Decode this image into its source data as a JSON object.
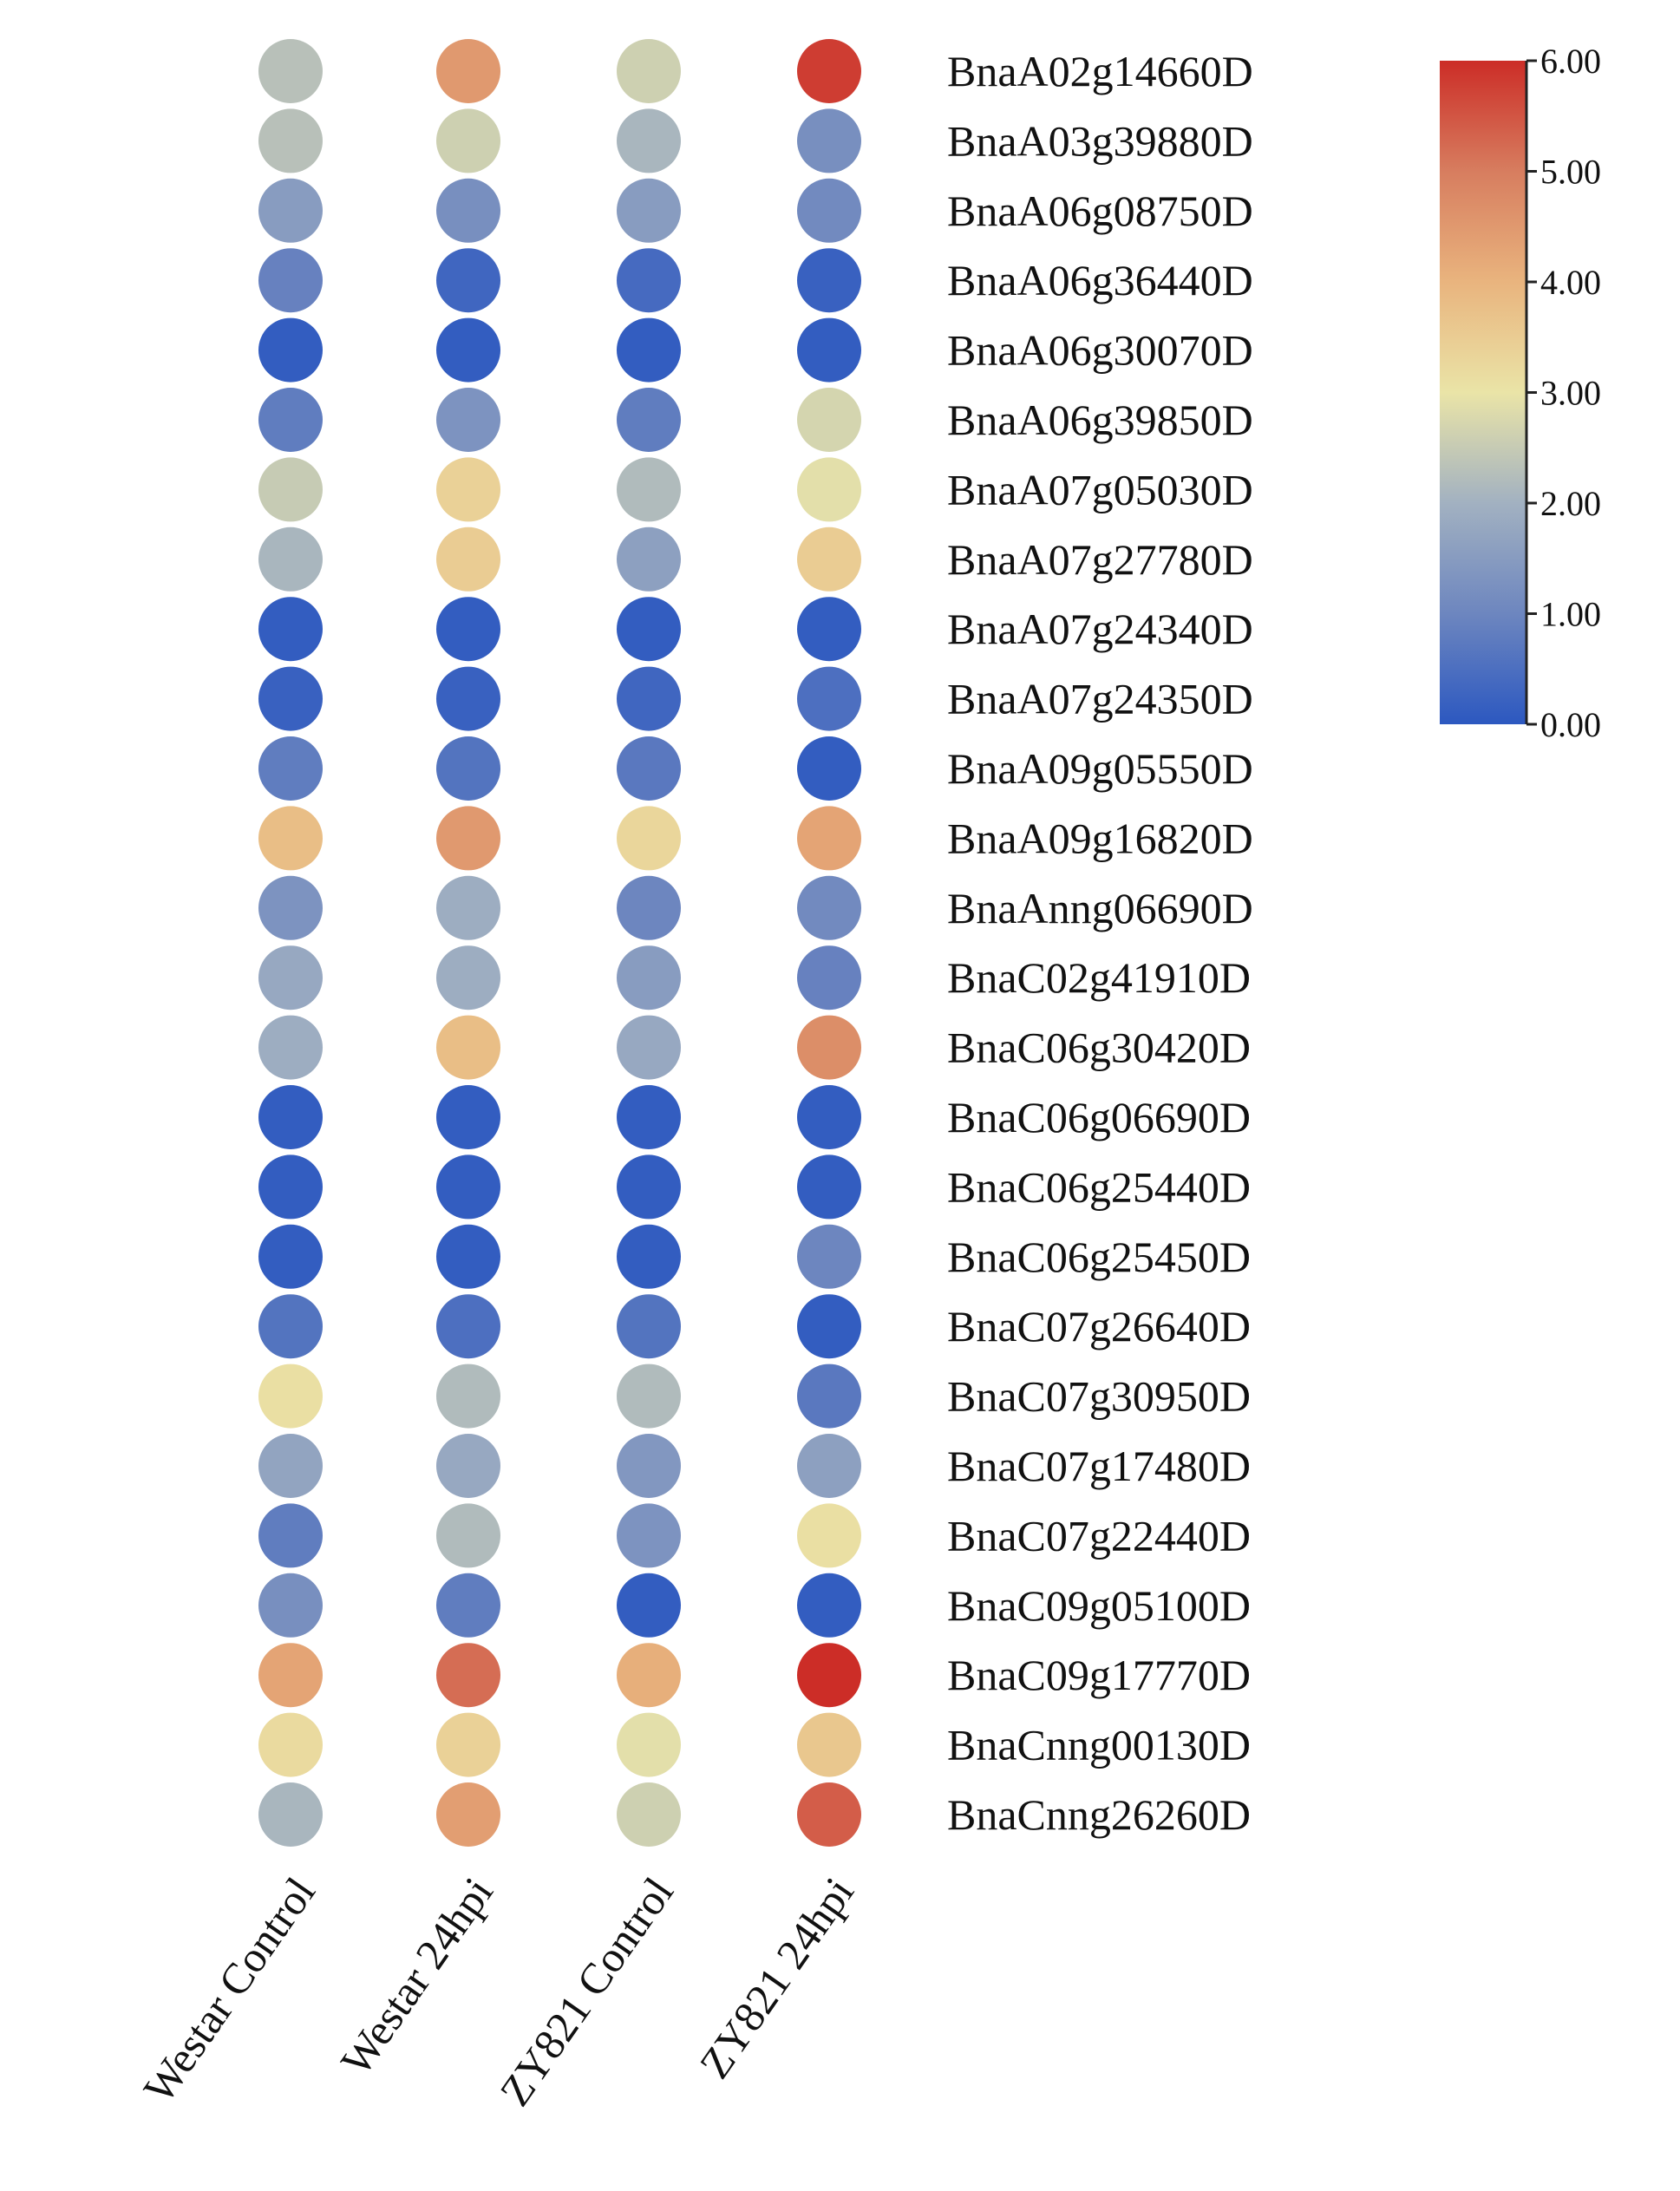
{
  "chart_data": {
    "type": "heatmap",
    "columns": [
      "Westar Control",
      "Westar 24hpi",
      "ZY821 Control",
      "ZY821 24hpi"
    ],
    "rows": [
      "BnaA02g14660D",
      "BnaA03g39880D",
      "BnaA06g08750D",
      "BnaA06g36440D",
      "BnaA06g30070D",
      "BnaA06g39850D",
      "BnaA07g05030D",
      "BnaA07g27780D",
      "BnaA07g24340D",
      "BnaA07g24350D",
      "BnaA09g05550D",
      "BnaA09g16820D",
      "BnaAnng06690D",
      "BnaC02g41910D",
      "BnaC06g30420D",
      "BnaC06g06690D",
      "BnaC06g25440D",
      "BnaC06g25450D",
      "BnaC07g26640D",
      "BnaC07g30950D",
      "BnaC07g17480D",
      "BnaC07g22440D",
      "BnaC09g05100D",
      "BnaC09g17770D",
      "BnaCnng00130D",
      "BnaCnng26260D"
    ],
    "values": [
      [
        2.3,
        4.5,
        2.6,
        5.8
      ],
      [
        2.3,
        2.6,
        2.1,
        1.2
      ],
      [
        1.5,
        1.2,
        1.5,
        1.1
      ],
      [
        0.9,
        0.3,
        0.4,
        0.2
      ],
      [
        0.1,
        0.1,
        0.1,
        0.1
      ],
      [
        0.8,
        1.3,
        0.8,
        2.7
      ],
      [
        2.5,
        3.4,
        2.2,
        2.9
      ],
      [
        2.1,
        3.5,
        1.6,
        3.5
      ],
      [
        0.1,
        0.1,
        0.1,
        0.1
      ],
      [
        0.2,
        0.2,
        0.3,
        0.5
      ],
      [
        0.8,
        0.6,
        0.7,
        0.1
      ],
      [
        3.8,
        4.5,
        3.3,
        4.3
      ],
      [
        1.3,
        1.9,
        1.0,
        1.1
      ],
      [
        1.8,
        1.9,
        1.5,
        0.9
      ],
      [
        1.9,
        3.8,
        1.8,
        4.7
      ],
      [
        0.1,
        0.1,
        0.1,
        0.1
      ],
      [
        0.1,
        0.1,
        0.1,
        0.1
      ],
      [
        0.1,
        0.1,
        0.1,
        1.0
      ],
      [
        0.6,
        0.5,
        0.6,
        0.1
      ],
      [
        3.1,
        2.2,
        2.2,
        0.7
      ],
      [
        1.7,
        1.8,
        1.4,
        1.6
      ],
      [
        0.8,
        2.2,
        1.3,
        3.1
      ],
      [
        1.2,
        0.8,
        0.1,
        0.1
      ],
      [
        4.3,
        5.2,
        4.1,
        6.0
      ],
      [
        3.2,
        3.4,
        2.9,
        3.6
      ],
      [
        2.1,
        4.4,
        2.6,
        5.4
      ]
    ],
    "colorbar": {
      "min": 0,
      "max": 6,
      "ticks": [
        "0.00",
        "1.00",
        "2.00",
        "3.00",
        "4.00",
        "5.00",
        "6.00"
      ],
      "colors": [
        "#2c58c0",
        "#6d86bf",
        "#a2b1c1",
        "#eae4a7",
        "#e9b47e",
        "#d77d5f",
        "#cc2d27"
      ]
    }
  }
}
